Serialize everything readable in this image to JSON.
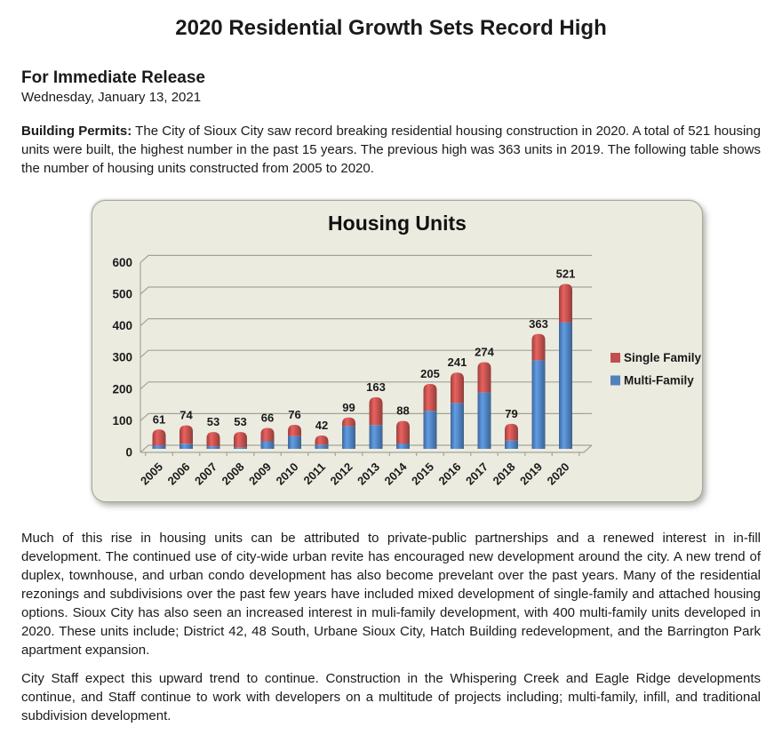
{
  "header": {
    "title": "2020 Residential Growth Sets Record High"
  },
  "release": {
    "heading": "For Immediate Release",
    "date": "Wednesday, January 13, 2021"
  },
  "paragraphs": {
    "building_permits_label": "Building Permits:",
    "building_permits_text": " The City of Sioux City saw record breaking residential housing construction in 2020. A total of 521 housing units were built, the highest number in the past 15 years. The previous high was 363 units in 2019. The following table shows the number of housing units constructed from 2005 to 2020.",
    "growth_analysis": "Much of this rise in housing units can be attributed to private-public partnerships and a renewed interest in in-fill development. The continued use of city-wide urban revite has encouraged new development around the city. A new trend of duplex, townhouse, and urban condo development has also become prevelant over the past years. Many of the residential rezonings and subdivisions over the past few years have included mixed development of single-family and attached housing options. Sioux City has also seen an increased interest in muli-family development, with 400 multi-family units developed in 2020. These units include; District 42, 48 South, Urbane Sioux City, Hatch Building redevelopment, and the Barrington Park apartment expansion.",
    "outlook": "City Staff expect this upward trend to continue. Construction in the Whispering Creek and Eagle Ridge developments continue, and Staff continue to work with developers on a multitude of projects including; multi-family, infill, and traditional subdivision development."
  },
  "chart_data": {
    "type": "bar",
    "stacked": true,
    "title": "Housing Units",
    "categories": [
      "2005",
      "2006",
      "2007",
      "2008",
      "2009",
      "2010",
      "2011",
      "2012",
      "2013",
      "2014",
      "2015",
      "2016",
      "2017",
      "2018",
      "2019",
      "2020"
    ],
    "series": [
      {
        "name": "Multi-Family",
        "color": "#4f81bd",
        "values": [
          11,
          16,
          8,
          5,
          24,
          40,
          13,
          72,
          75,
          17,
          120,
          145,
          178,
          26,
          280,
          400
        ]
      },
      {
        "name": "Single Family",
        "color": "#c0504d",
        "values": [
          50,
          58,
          45,
          48,
          42,
          36,
          29,
          27,
          88,
          71,
          85,
          96,
          96,
          53,
          83,
          121
        ]
      }
    ],
    "totals": [
      61,
      74,
      53,
      53,
      66,
      76,
      42,
      99,
      163,
      88,
      205,
      241,
      274,
      79,
      363,
      521
    ],
    "xlabel": "",
    "ylabel": "",
    "ylim": [
      0,
      600
    ],
    "ytick_step": 100,
    "grid": true,
    "legend_position": "right",
    "legend_order": [
      "Single Family",
      "Multi-Family"
    ],
    "colors": {
      "panel_background": "#ecebe0",
      "gridline": "#a3a396",
      "text": "#1a1a1a"
    }
  }
}
